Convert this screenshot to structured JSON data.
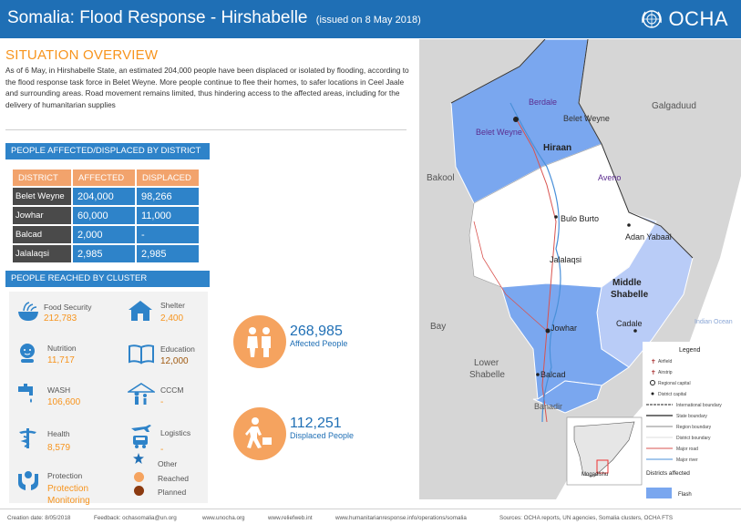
{
  "header": {
    "title": "Somalia: Flood Response - Hirshabelle",
    "issued": "(issued on 8 May 2018)",
    "logo_text": "OCHA"
  },
  "overview": {
    "title": "SITUATION OVERVIEW",
    "text": "As of 6 May, in Hirshabelle State, an estimated 204,000 people have been displaced or isolated by flooding, according to the flood response task force in Belet Weyne. More people continue to flee their homes, to safer locations in Ceel Jaale and surrounding areas. Road movement remains limited, thus hindering access to the affected areas, including for the delivery of humanitarian supplies"
  },
  "district_section": {
    "title": "PEOPLE AFFECTED/DISPLACED BY DISTRICT",
    "headers": [
      "DISTRICT",
      "AFFECTED",
      "DISPLACED"
    ],
    "rows": [
      {
        "district": "Belet Weyne",
        "affected": "204,000",
        "displaced": "98,266"
      },
      {
        "district": "Jowhar",
        "affected": "60,000",
        "displaced": "11,000"
      },
      {
        "district": "Balcad",
        "affected": "2,000",
        "displaced": "-"
      },
      {
        "district": "Jalalaqsi",
        "affected": "2,985",
        "displaced": "2,985"
      }
    ]
  },
  "cluster_section": {
    "title": "PEOPLE REACHED BY CLUSTER",
    "food_security": {
      "name": "Food Security",
      "value": "212,783"
    },
    "nutrition": {
      "name": "Nutrition",
      "value": "11,717"
    },
    "wash": {
      "name": "WASH",
      "value": "106,600"
    },
    "health": {
      "name": "Health",
      "value": "8,579"
    },
    "protection": {
      "name": "Protection",
      "value": "Protection Monitoring"
    },
    "shelter": {
      "name": "Shelter",
      "value": "2,400"
    },
    "education": {
      "name": "Education",
      "value": "12,000"
    },
    "cccm": {
      "name": "CCCM",
      "value": "-"
    },
    "logistics": {
      "name": "Logistics",
      "value": "-"
    },
    "legend": {
      "other": "Other",
      "reached": "Reached",
      "planned": "Planned"
    }
  },
  "totals": {
    "affected": {
      "value": "268,985",
      "label": "Affected People"
    },
    "displaced": {
      "value": "112,251",
      "label": "Displaced People"
    }
  },
  "map": {
    "regions": {
      "hiraan": "Hiraan",
      "middle_shabelle_1": "Middle",
      "middle_shabelle_2": "Shabelle",
      "galgaduud": "Galgaduud",
      "bakool": "Bakool",
      "bay": "Bay",
      "lower_shabelle_1": "Lower",
      "lower_shabelle_2": "Shabelle",
      "banadir": "Banadir",
      "indian_ocean": "Indian Ocean"
    },
    "places": {
      "berdale": "Berdale",
      "belet_weyne_town": "Belet Weyne",
      "belet_weyne_district": "Belet Weyne",
      "aveno": "Aveno",
      "bulo_burto": "Bulo Burto",
      "adan_yabaal": "Adan Yabaal",
      "jalalaqsi": "Jalalaqsi",
      "jowhar": "Jowhar",
      "cadale": "Cadale",
      "balcad": "Balcad",
      "mogadishu": "Mogadishu"
    },
    "legend": {
      "title": "Legend",
      "items": [
        "Airfield",
        "Airstrip",
        "Regional capital",
        "District capital",
        "International boundary",
        "State boundary",
        "Region boundary",
        "District boundary",
        "Major road",
        "Major river"
      ],
      "districts_title": "Districts affected",
      "flash": "Flash"
    },
    "colors": {
      "flash": "#7aa7ef",
      "riverine": "#b9ccf7",
      "unaffected": "#d9d9d9",
      "river": "#4a90d9",
      "road": "#d9534f"
    }
  },
  "footer": {
    "creation": "Creation date: 8/05/2018",
    "feedback": "Feedback: ochasomalia@un.org",
    "site1": "www.unocha.org",
    "site2": "www.reliefweb.int",
    "site3": "www.humanitarianresponse.info/operations/somalia",
    "sources": "Sources: OCHA reports, UN agencies,   Somalia clusters,   OCHA FTS"
  },
  "theme": {
    "header_blue": "#1f6fb5",
    "accent_orange": "#f7941d",
    "table_header": "#f2a36c",
    "table_value": "#2e83c9",
    "table_district": "#4a4a4a",
    "circle_orange": "#f5a35f"
  }
}
